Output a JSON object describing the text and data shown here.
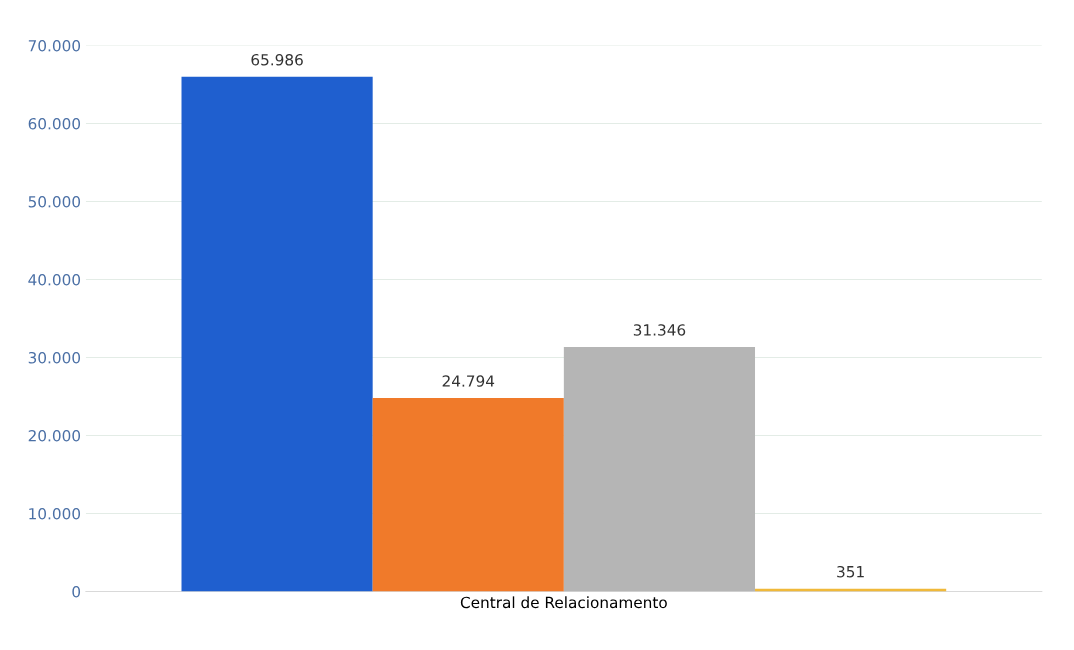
{
  "chart_data": {
    "type": "bar",
    "categories": [
      "Central de Relacionamento"
    ],
    "series": [
      {
        "color": "#1f5fcf",
        "values": [
          65986
        ],
        "value_labels": [
          "65.986"
        ]
      },
      {
        "color": "#f07a2a",
        "values": [
          24794
        ],
        "value_labels": [
          "24.794"
        ]
      },
      {
        "color": "#b5b5b5",
        "values": [
          31346
        ],
        "value_labels": [
          "31.346"
        ]
      },
      {
        "color": "#f0b93a",
        "values": [
          351
        ],
        "value_labels": [
          "351"
        ]
      }
    ],
    "ylim": [
      0,
      70000
    ],
    "yticks": [
      0,
      {
        "value": 10000,
        "label": "10.000"
      },
      {
        "value": 20000,
        "label": "20.000"
      },
      {
        "value": 30000,
        "label": "30.000"
      },
      {
        "value": 40000,
        "label": "40.000"
      },
      {
        "value": 50000,
        "label": "50.000"
      },
      {
        "value": 60000,
        "label": "60.000"
      },
      {
        "value": 70000,
        "label": "70.000"
      }
    ],
    "grid": "y",
    "legend": false
  }
}
